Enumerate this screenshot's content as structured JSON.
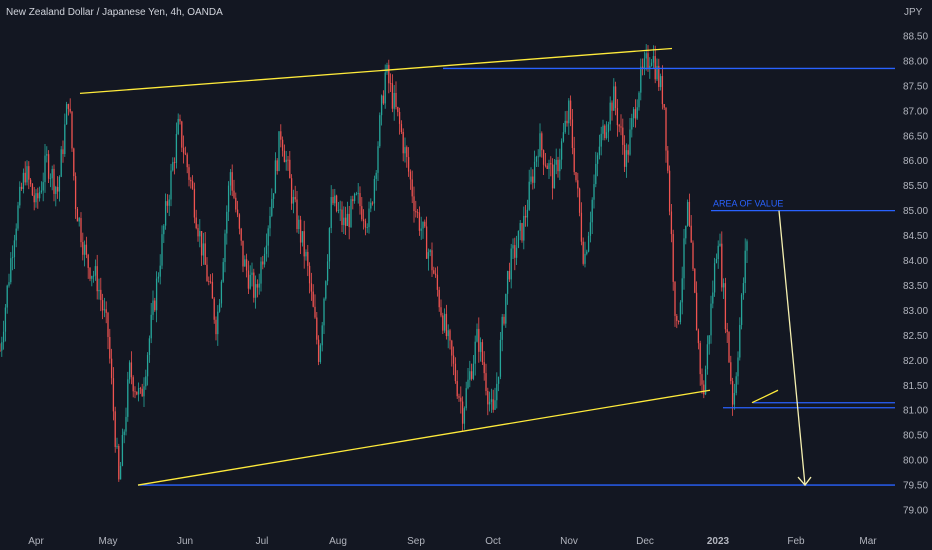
{
  "header": {
    "title": "New Zealand Dollar / Japanese Yen, 4h, OANDA"
  },
  "chart_data": {
    "type": "candlestick",
    "title": "New Zealand Dollar / Japanese Yen, 4h, OANDA",
    "y_unit": "JPY",
    "ylim": [
      78.85,
      89.05
    ],
    "y_ticks": [
      "79.00",
      "79.50",
      "80.00",
      "80.50",
      "81.00",
      "81.50",
      "82.00",
      "82.50",
      "83.00",
      "83.50",
      "84.00",
      "84.50",
      "85.00",
      "85.50",
      "86.00",
      "86.50",
      "87.00",
      "87.50",
      "88.00",
      "88.50"
    ],
    "x_ticks": [
      "Apr",
      "May",
      "Jun",
      "Jul",
      "Aug",
      "Sep",
      "Oct",
      "Nov",
      "Dec",
      "2023",
      "Feb",
      "Mar"
    ],
    "price_path": [
      [
        "Apr",
        82.2
      ],
      [
        "Apr",
        84.6
      ],
      [
        "Apr",
        85.8
      ],
      [
        "Apr",
        85.1
      ],
      [
        "Apr",
        86.0
      ],
      [
        "Apr",
        85.4
      ],
      [
        "Apr",
        87.3
      ],
      [
        "May",
        85.2
      ],
      [
        "May",
        84.0
      ],
      [
        "May",
        83.6
      ],
      [
        "May",
        82.5
      ],
      [
        "May",
        79.5
      ],
      [
        "May",
        81.8
      ],
      [
        "May",
        81.2
      ],
      [
        "Jun",
        83.0
      ],
      [
        "Jun",
        85.0
      ],
      [
        "Jun",
        86.7
      ],
      [
        "Jun",
        85.5
      ],
      [
        "Jun",
        84.0
      ],
      [
        "Jun",
        82.7
      ],
      [
        "Jul",
        85.8
      ],
      [
        "Jul",
        84.0
      ],
      [
        "Jul",
        83.3
      ],
      [
        "Jul",
        84.8
      ],
      [
        "Jul",
        86.6
      ],
      [
        "Jul",
        85.1
      ],
      [
        "Aug",
        84.0
      ],
      [
        "Aug",
        82.1
      ],
      [
        "Aug",
        85.2
      ],
      [
        "Aug",
        84.7
      ],
      [
        "Aug",
        85.2
      ],
      [
        "Aug",
        84.8
      ],
      [
        "Sep",
        87.8
      ],
      [
        "Sep",
        86.6
      ],
      [
        "Sep",
        85.0
      ],
      [
        "Sep",
        84.0
      ],
      [
        "Sep",
        82.5
      ],
      [
        "Oct",
        81.0
      ],
      [
        "Oct",
        82.5
      ],
      [
        "Oct",
        80.8
      ],
      [
        "Oct",
        83.8
      ],
      [
        "Oct",
        84.7
      ],
      [
        "Nov",
        86.4
      ],
      [
        "Nov",
        85.6
      ],
      [
        "Nov",
        87.0
      ],
      [
        "Nov",
        84.0
      ],
      [
        "Nov",
        86.3
      ],
      [
        "Dec",
        87.3
      ],
      [
        "Dec",
        86.0
      ],
      [
        "Dec",
        87.5
      ],
      [
        "Dec",
        88.2
      ],
      [
        "Dec",
        87.2
      ],
      [
        "Dec",
        82.5
      ],
      [
        "2023",
        85.0
      ],
      [
        "2023",
        81.2
      ],
      [
        "2023",
        84.6
      ],
      [
        "2023",
        81.1
      ],
      [
        "2023",
        84.8
      ]
    ],
    "horizontal_lines": [
      {
        "price": 87.85,
        "color": "#2962ff"
      },
      {
        "price": 85.0,
        "color": "#2962ff"
      },
      {
        "price": 81.15,
        "color": "#2962ff"
      },
      {
        "price": 81.05,
        "color": "#2962ff"
      },
      {
        "price": 79.5,
        "color": "#2962ff"
      }
    ],
    "trendlines": [
      {
        "from": [
          "Apr",
          87.35
        ],
        "to": [
          "Dec",
          88.25
        ],
        "color": "#ffeb3b"
      },
      {
        "from": [
          "May",
          79.5
        ],
        "to": [
          "2023",
          81.4
        ],
        "color": "#ffeb3b"
      }
    ],
    "annotations": [
      {
        "text": "AREA OF VALUE",
        "price": 85.0,
        "color": "#2962ff"
      }
    ],
    "colors": {
      "background": "#131722",
      "up": "#26a69a",
      "down": "#ef5350",
      "trend": "#ffeb3b",
      "level": "#2962ff"
    },
    "grid": false
  }
}
